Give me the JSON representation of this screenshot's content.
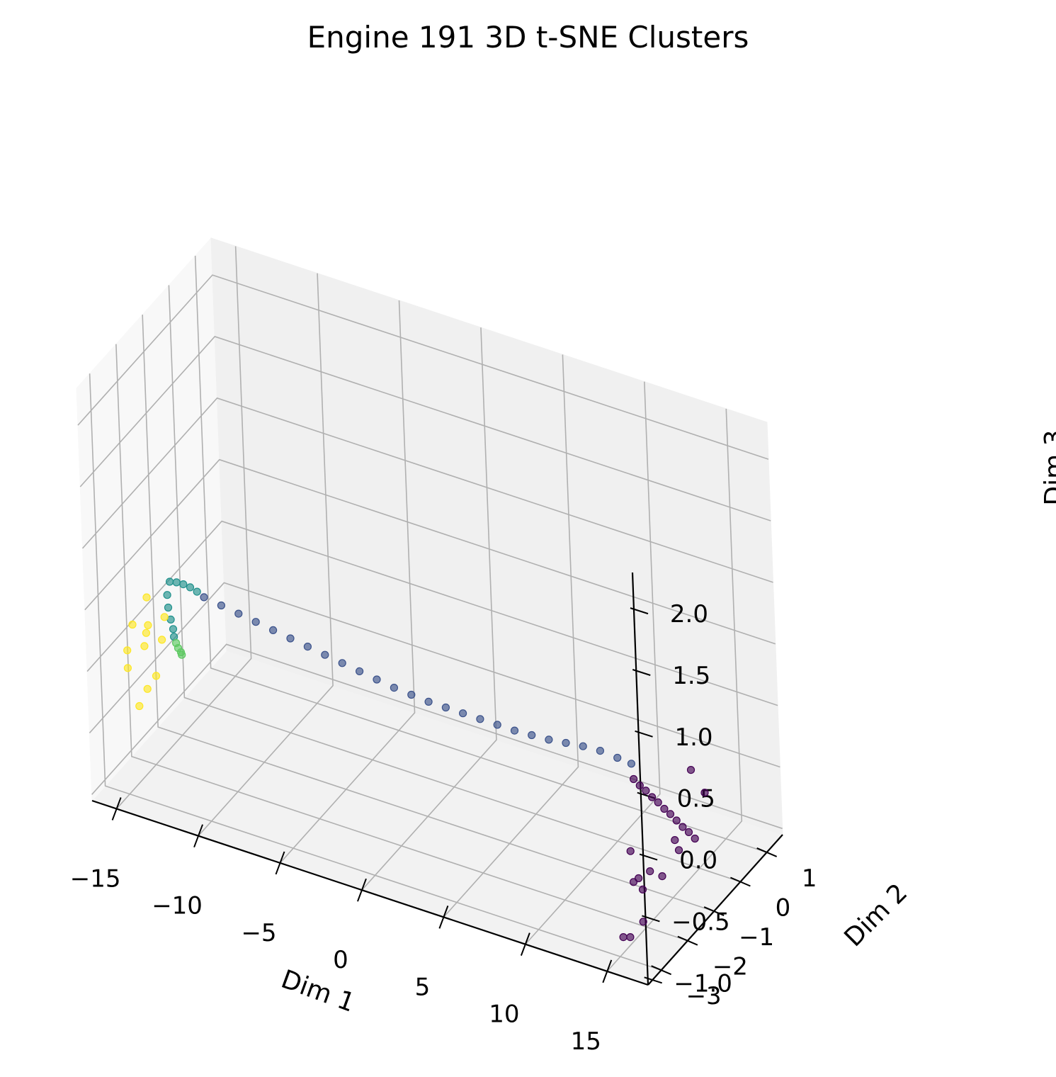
{
  "chart_data": {
    "type": "scatter",
    "projection": "3d",
    "title": "Engine 191 3D t-SNE Clusters",
    "xlabel": "Dim 1",
    "ylabel": "Dim 2",
    "zlabel": "Dim 3",
    "xlim": [
      -16.5,
      17.5
    ],
    "ylim": [
      -3.5,
      1.6
    ],
    "zlim": [
      -1.05,
      2.3
    ],
    "xticks": [
      -15,
      -10,
      -5,
      0,
      5,
      10,
      15
    ],
    "xtick_labels": [
      "−15",
      "−10",
      "−5",
      "0",
      "5",
      "10",
      "15"
    ],
    "yticks": [
      -3,
      -2,
      -1,
      0,
      1
    ],
    "ytick_labels": [
      "−3",
      "−2",
      "−1",
      "0",
      "1"
    ],
    "zticks": [
      -1.0,
      -0.5,
      0.0,
      0.5,
      1.0,
      1.5,
      2.0
    ],
    "ztick_labels": [
      "−1.0",
      "−0.5",
      "0.0",
      "0.5",
      "1.0",
      "1.5",
      "2.0"
    ],
    "grid": true,
    "colormap": "viridis",
    "clusters": [
      {
        "color": "#440154",
        "points": [
          [
            13.0,
            -1.1,
            -0.15
          ],
          [
            13.4,
            -1.12,
            -0.18
          ],
          [
            13.8,
            -1.14,
            -0.2
          ],
          [
            14.2,
            -1.16,
            -0.23
          ],
          [
            14.6,
            -1.18,
            -0.25
          ],
          [
            15.0,
            -1.2,
            -0.28
          ],
          [
            15.4,
            -1.22,
            -0.3
          ],
          [
            15.8,
            -1.24,
            -0.33
          ],
          [
            16.2,
            -1.26,
            -0.36
          ],
          [
            16.6,
            -1.28,
            -0.38
          ],
          [
            17.0,
            -1.3,
            -0.41
          ],
          [
            16.6,
            -1.8,
            -0.32
          ],
          [
            17.0,
            -1.9,
            -0.36
          ],
          [
            15.5,
            -2.1,
            -0.55
          ],
          [
            14.8,
            -2.3,
            -0.62
          ],
          [
            15.8,
            -2.7,
            -0.45
          ],
          [
            16.2,
            -2.8,
            -0.5
          ],
          [
            14.0,
            -1.9,
            -0.5
          ],
          [
            17.1,
            -2.6,
            -0.4
          ],
          [
            16.5,
            -3.0,
            -0.7
          ],
          [
            16.0,
            -3.2,
            -0.8
          ],
          [
            15.4,
            -3.1,
            -0.85
          ],
          [
            16.4,
            -1.0,
            0.05
          ],
          [
            17.2,
            -1.0,
            -0.1
          ]
        ]
      },
      {
        "color": "#3b528b",
        "points": [
          [
            -12.5,
            -1.5,
            0.3
          ],
          [
            -11.5,
            -1.47,
            0.27
          ],
          [
            -10.5,
            -1.44,
            0.24
          ],
          [
            -9.5,
            -1.41,
            0.21
          ],
          [
            -8.5,
            -1.38,
            0.18
          ],
          [
            -7.5,
            -1.35,
            0.15
          ],
          [
            -6.5,
            -1.32,
            0.12
          ],
          [
            -5.5,
            -1.29,
            0.09
          ],
          [
            -4.5,
            -1.26,
            0.06
          ],
          [
            -3.5,
            -1.23,
            0.03
          ],
          [
            -2.5,
            -1.2,
            0.0
          ],
          [
            -1.5,
            -1.17,
            -0.03
          ],
          [
            -0.5,
            -1.14,
            -0.05
          ],
          [
            0.5,
            -1.11,
            -0.07
          ],
          [
            1.5,
            -1.08,
            -0.08
          ],
          [
            2.5,
            -1.05,
            -0.09
          ],
          [
            3.5,
            -1.02,
            -0.1
          ],
          [
            4.5,
            -0.99,
            -0.11
          ],
          [
            5.5,
            -0.96,
            -0.12
          ],
          [
            6.5,
            -0.93,
            -0.12
          ],
          [
            7.5,
            -0.9,
            -0.12
          ],
          [
            8.5,
            -0.87,
            -0.11
          ],
          [
            9.5,
            -0.84,
            -0.1
          ],
          [
            10.5,
            -0.81,
            -0.1
          ],
          [
            11.5,
            -0.78,
            -0.12
          ],
          [
            12.3,
            -0.75,
            -0.14
          ]
        ]
      },
      {
        "color": "#21918c",
        "points": [
          [
            -14.5,
            -1.55,
            0.35
          ],
          [
            -14.1,
            -1.54,
            0.36
          ],
          [
            -13.7,
            -1.53,
            0.36
          ],
          [
            -13.3,
            -1.52,
            0.35
          ],
          [
            -12.9,
            -1.51,
            0.33
          ],
          [
            -14.6,
            -1.6,
            0.25
          ],
          [
            -14.4,
            -1.7,
            0.18
          ],
          [
            -14.1,
            -1.8,
            0.12
          ],
          [
            -13.8,
            -1.9,
            0.08
          ],
          [
            -13.6,
            -2.0,
            0.05
          ]
        ]
      },
      {
        "color": "#5ec962",
        "points": [
          [
            -13.4,
            -2.05,
            0.02
          ],
          [
            -13.2,
            -2.1,
            0.0
          ],
          [
            -13.0,
            -2.12,
            -0.02
          ],
          [
            -12.9,
            -2.15,
            -0.03
          ]
        ]
      },
      {
        "color": "#fde725",
        "points": [
          [
            -14.8,
            -2.3,
            0.1
          ],
          [
            -14.5,
            -2.4,
            0.2
          ],
          [
            -15.2,
            -2.0,
            0.3
          ],
          [
            -15.5,
            -2.6,
            0.0
          ],
          [
            -14.0,
            -2.8,
            -0.2
          ],
          [
            -13.5,
            -2.5,
            0.15
          ],
          [
            -14.2,
            -3.0,
            -0.3
          ],
          [
            -15.0,
            -2.9,
            -0.05
          ],
          [
            -13.8,
            -2.2,
            0.25
          ],
          [
            -14.6,
            -2.5,
            0.05
          ],
          [
            -15.8,
            -2.2,
            0.1
          ],
          [
            -13.6,
            -2.7,
            -0.1
          ]
        ]
      }
    ]
  }
}
